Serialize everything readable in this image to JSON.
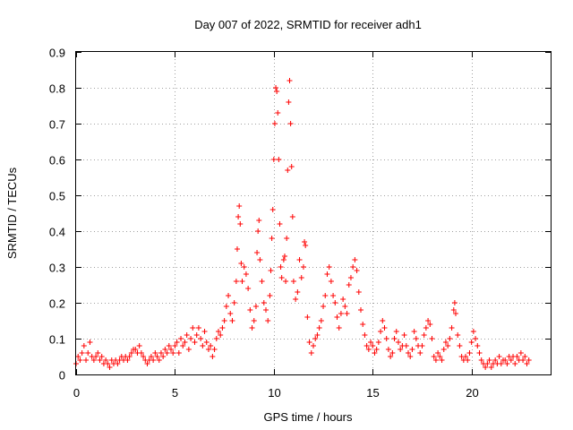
{
  "chart_data": {
    "type": "scatter",
    "title": "Day 007 of 2022, SRMTID for receiver adh1",
    "xlabel": "GPS time / hours",
    "ylabel": "SRMTID / TECUs",
    "xlim": [
      0,
      24
    ],
    "ylim": [
      0,
      0.9
    ],
    "xticks": [
      0,
      5,
      10,
      15,
      20
    ],
    "yticks": [
      0,
      0.1,
      0.2,
      0.3,
      0.4,
      0.5,
      0.6,
      0.7,
      0.8,
      0.9
    ],
    "xtick_labels": [
      "0",
      "5",
      "10",
      "15",
      "20"
    ],
    "ytick_labels": [
      "0",
      "0.1",
      "0.2",
      "0.3",
      "0.4",
      "0.5",
      "0.6",
      "0.7",
      "0.8",
      "0.9"
    ],
    "grid": true,
    "marker": "+",
    "color": "#ff0000",
    "series": [
      {
        "name": "SRMTID",
        "points": [
          [
            0.0,
            0.03
          ],
          [
            0.1,
            0.05
          ],
          [
            0.2,
            0.04
          ],
          [
            0.3,
            0.06
          ],
          [
            0.4,
            0.08
          ],
          [
            0.5,
            0.04
          ],
          [
            0.6,
            0.06
          ],
          [
            0.7,
            0.09
          ],
          [
            0.8,
            0.05
          ],
          [
            0.9,
            0.04
          ],
          [
            1.0,
            0.05
          ],
          [
            1.1,
            0.06
          ],
          [
            1.2,
            0.04
          ],
          [
            1.3,
            0.05
          ],
          [
            1.4,
            0.03
          ],
          [
            1.5,
            0.04
          ],
          [
            1.6,
            0.03
          ],
          [
            1.7,
            0.02
          ],
          [
            1.8,
            0.04
          ],
          [
            1.9,
            0.03
          ],
          [
            2.0,
            0.04
          ],
          [
            2.1,
            0.03
          ],
          [
            2.2,
            0.04
          ],
          [
            2.3,
            0.05
          ],
          [
            2.4,
            0.04
          ],
          [
            2.5,
            0.05
          ],
          [
            2.6,
            0.04
          ],
          [
            2.7,
            0.05
          ],
          [
            2.8,
            0.06
          ],
          [
            2.9,
            0.07
          ],
          [
            3.0,
            0.07
          ],
          [
            3.1,
            0.06
          ],
          [
            3.2,
            0.08
          ],
          [
            3.3,
            0.06
          ],
          [
            3.4,
            0.05
          ],
          [
            3.5,
            0.04
          ],
          [
            3.6,
            0.03
          ],
          [
            3.7,
            0.04
          ],
          [
            3.8,
            0.05
          ],
          [
            3.9,
            0.04
          ],
          [
            4.0,
            0.06
          ],
          [
            4.1,
            0.05
          ],
          [
            4.2,
            0.04
          ],
          [
            4.3,
            0.06
          ],
          [
            4.4,
            0.05
          ],
          [
            4.5,
            0.07
          ],
          [
            4.6,
            0.06
          ],
          [
            4.7,
            0.08
          ],
          [
            4.8,
            0.07
          ],
          [
            4.9,
            0.06
          ],
          [
            5.0,
            0.08
          ],
          [
            5.1,
            0.09
          ],
          [
            5.2,
            0.06
          ],
          [
            5.3,
            0.1
          ],
          [
            5.4,
            0.08
          ],
          [
            5.5,
            0.09
          ],
          [
            5.6,
            0.11
          ],
          [
            5.7,
            0.07
          ],
          [
            5.8,
            0.1
          ],
          [
            5.9,
            0.13
          ],
          [
            6.0,
            0.09
          ],
          [
            6.1,
            0.11
          ],
          [
            6.2,
            0.13
          ],
          [
            6.3,
            0.1
          ],
          [
            6.4,
            0.08
          ],
          [
            6.5,
            0.12
          ],
          [
            6.6,
            0.09
          ],
          [
            6.7,
            0.07
          ],
          [
            6.8,
            0.08
          ],
          [
            6.9,
            0.05
          ],
          [
            7.0,
            0.07
          ],
          [
            7.1,
            0.1
          ],
          [
            7.2,
            0.12
          ],
          [
            7.3,
            0.11
          ],
          [
            7.4,
            0.13
          ],
          [
            7.5,
            0.15
          ],
          [
            7.6,
            0.19
          ],
          [
            7.7,
            0.22
          ],
          [
            7.8,
            0.17
          ],
          [
            7.9,
            0.15
          ],
          [
            8.0,
            0.2
          ],
          [
            8.1,
            0.26
          ],
          [
            8.15,
            0.35
          ],
          [
            8.2,
            0.44
          ],
          [
            8.25,
            0.47
          ],
          [
            8.3,
            0.42
          ],
          [
            8.35,
            0.31
          ],
          [
            8.4,
            0.26
          ],
          [
            8.5,
            0.3
          ],
          [
            8.6,
            0.28
          ],
          [
            8.7,
            0.24
          ],
          [
            8.8,
            0.18
          ],
          [
            8.9,
            0.13
          ],
          [
            9.0,
            0.15
          ],
          [
            9.1,
            0.19
          ],
          [
            9.15,
            0.34
          ],
          [
            9.2,
            0.4
          ],
          [
            9.25,
            0.43
          ],
          [
            9.3,
            0.32
          ],
          [
            9.4,
            0.26
          ],
          [
            9.5,
            0.2
          ],
          [
            9.6,
            0.18
          ],
          [
            9.7,
            0.15
          ],
          [
            9.8,
            0.22
          ],
          [
            9.85,
            0.29
          ],
          [
            9.9,
            0.38
          ],
          [
            9.95,
            0.46
          ],
          [
            10.0,
            0.6
          ],
          [
            10.05,
            0.7
          ],
          [
            10.1,
            0.8
          ],
          [
            10.15,
            0.79
          ],
          [
            10.2,
            0.73
          ],
          [
            10.25,
            0.6
          ],
          [
            10.3,
            0.42
          ],
          [
            10.35,
            0.3
          ],
          [
            10.4,
            0.27
          ],
          [
            10.5,
            0.32
          ],
          [
            10.55,
            0.33
          ],
          [
            10.6,
            0.26
          ],
          [
            10.65,
            0.38
          ],
          [
            10.7,
            0.57
          ],
          [
            10.75,
            0.76
          ],
          [
            10.8,
            0.82
          ],
          [
            10.85,
            0.7
          ],
          [
            10.9,
            0.58
          ],
          [
            10.95,
            0.44
          ],
          [
            11.0,
            0.26
          ],
          [
            11.1,
            0.21
          ],
          [
            11.2,
            0.23
          ],
          [
            11.3,
            0.32
          ],
          [
            11.4,
            0.27
          ],
          [
            11.5,
            0.3
          ],
          [
            11.55,
            0.37
          ],
          [
            11.6,
            0.36
          ],
          [
            11.7,
            0.16
          ],
          [
            11.8,
            0.09
          ],
          [
            11.9,
            0.06
          ],
          [
            12.0,
            0.08
          ],
          [
            12.1,
            0.1
          ],
          [
            12.2,
            0.11
          ],
          [
            12.3,
            0.13
          ],
          [
            12.4,
            0.15
          ],
          [
            12.5,
            0.19
          ],
          [
            12.6,
            0.22
          ],
          [
            12.7,
            0.28
          ],
          [
            12.8,
            0.3
          ],
          [
            12.9,
            0.26
          ],
          [
            13.0,
            0.22
          ],
          [
            13.1,
            0.2
          ],
          [
            13.2,
            0.16
          ],
          [
            13.3,
            0.13
          ],
          [
            13.4,
            0.17
          ],
          [
            13.5,
            0.21
          ],
          [
            13.6,
            0.19
          ],
          [
            13.7,
            0.17
          ],
          [
            13.8,
            0.25
          ],
          [
            13.9,
            0.27
          ],
          [
            14.0,
            0.3
          ],
          [
            14.1,
            0.32
          ],
          [
            14.2,
            0.29
          ],
          [
            14.3,
            0.23
          ],
          [
            14.4,
            0.18
          ],
          [
            14.5,
            0.14
          ],
          [
            14.6,
            0.11
          ],
          [
            14.7,
            0.08
          ],
          [
            14.8,
            0.07
          ],
          [
            14.9,
            0.09
          ],
          [
            15.0,
            0.08
          ],
          [
            15.1,
            0.06
          ],
          [
            15.2,
            0.07
          ],
          [
            15.3,
            0.09
          ],
          [
            15.4,
            0.12
          ],
          [
            15.5,
            0.15
          ],
          [
            15.6,
            0.13
          ],
          [
            15.7,
            0.1
          ],
          [
            15.8,
            0.07
          ],
          [
            15.9,
            0.05
          ],
          [
            16.0,
            0.06
          ],
          [
            16.1,
            0.1
          ],
          [
            16.2,
            0.12
          ],
          [
            16.3,
            0.09
          ],
          [
            16.4,
            0.07
          ],
          [
            16.5,
            0.08
          ],
          [
            16.6,
            0.11
          ],
          [
            16.7,
            0.08
          ],
          [
            16.8,
            0.06
          ],
          [
            16.9,
            0.05
          ],
          [
            17.0,
            0.07
          ],
          [
            17.1,
            0.12
          ],
          [
            17.2,
            0.1
          ],
          [
            17.3,
            0.08
          ],
          [
            17.4,
            0.06
          ],
          [
            17.5,
            0.08
          ],
          [
            17.6,
            0.11
          ],
          [
            17.7,
            0.13
          ],
          [
            17.8,
            0.15
          ],
          [
            17.9,
            0.14
          ],
          [
            18.0,
            0.1
          ],
          [
            18.1,
            0.05
          ],
          [
            18.2,
            0.04
          ],
          [
            18.3,
            0.06
          ],
          [
            18.4,
            0.05
          ],
          [
            18.5,
            0.04
          ],
          [
            18.6,
            0.07
          ],
          [
            18.7,
            0.09
          ],
          [
            18.8,
            0.08
          ],
          [
            18.9,
            0.1
          ],
          [
            19.0,
            0.13
          ],
          [
            19.1,
            0.18
          ],
          [
            19.15,
            0.2
          ],
          [
            19.2,
            0.17
          ],
          [
            19.3,
            0.11
          ],
          [
            19.4,
            0.08
          ],
          [
            19.5,
            0.05
          ],
          [
            19.6,
            0.04
          ],
          [
            19.7,
            0.05
          ],
          [
            19.8,
            0.04
          ],
          [
            19.9,
            0.06
          ],
          [
            20.0,
            0.09
          ],
          [
            20.1,
            0.12
          ],
          [
            20.2,
            0.1
          ],
          [
            20.3,
            0.08
          ],
          [
            20.4,
            0.06
          ],
          [
            20.5,
            0.04
          ],
          [
            20.6,
            0.03
          ],
          [
            20.7,
            0.02
          ],
          [
            20.8,
            0.03
          ],
          [
            20.9,
            0.04
          ],
          [
            21.0,
            0.02
          ],
          [
            21.1,
            0.03
          ],
          [
            21.2,
            0.04
          ],
          [
            21.3,
            0.03
          ],
          [
            21.4,
            0.05
          ],
          [
            21.5,
            0.03
          ],
          [
            21.6,
            0.04
          ],
          [
            21.7,
            0.04
          ],
          [
            21.8,
            0.03
          ],
          [
            21.9,
            0.05
          ],
          [
            22.0,
            0.04
          ],
          [
            22.1,
            0.05
          ],
          [
            22.2,
            0.03
          ],
          [
            22.3,
            0.05
          ],
          [
            22.4,
            0.04
          ],
          [
            22.5,
            0.06
          ],
          [
            22.6,
            0.04
          ],
          [
            22.7,
            0.05
          ],
          [
            22.8,
            0.03
          ],
          [
            22.9,
            0.04
          ]
        ]
      }
    ]
  }
}
